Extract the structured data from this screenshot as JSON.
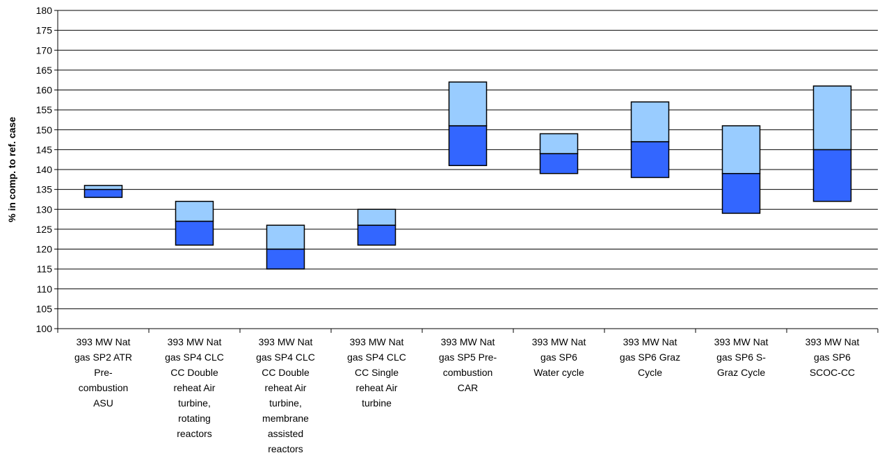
{
  "chart_data": {
    "type": "bar",
    "subtype": "floating-stacked",
    "title": "",
    "xlabel": "",
    "ylabel": "% in comp. to ref. case",
    "ylim": [
      100,
      180
    ],
    "ytick_step": 5,
    "grid": true,
    "legend": "none",
    "colors": {
      "lower": "#3366ff",
      "upper": "#99ccff",
      "grid": "#000000"
    },
    "categories": [
      [
        "393 MW Nat",
        "gas SP2 ATR",
        "Pre-",
        "combustion",
        "ASU"
      ],
      [
        "393 MW Nat",
        "gas SP4 CLC",
        "CC Double",
        "reheat Air",
        "turbine,",
        "rotating",
        "reactors"
      ],
      [
        "393 MW Nat",
        "gas SP4 CLC",
        "CC Double",
        "reheat Air",
        "turbine,",
        "membrane",
        "assisted",
        "reactors"
      ],
      [
        "393 MW Nat",
        "gas SP4 CLC",
        "CC Single",
        "reheat Air",
        "turbine"
      ],
      [
        "393 MW Nat",
        "gas SP5 Pre-",
        "combustion",
        "CAR"
      ],
      [
        "393 MW Nat",
        "gas SP6",
        "Water cycle"
      ],
      [
        "393 MW Nat",
        "gas SP6 Graz",
        "Cycle"
      ],
      [
        "393 MW Nat",
        "gas SP6 S-",
        "Graz Cycle"
      ],
      [
        "393 MW Nat",
        "gas SP6",
        "SCOC-CC"
      ]
    ],
    "series": [
      {
        "role": "low",
        "values": [
          133,
          121,
          115,
          121,
          141,
          139,
          138,
          129,
          132
        ]
      },
      {
        "role": "mid",
        "values": [
          135,
          127,
          120,
          126,
          151,
          144,
          147,
          139,
          145
        ]
      },
      {
        "role": "high",
        "values": [
          136,
          132,
          126,
          130,
          162,
          149,
          157,
          151,
          161
        ]
      }
    ]
  }
}
